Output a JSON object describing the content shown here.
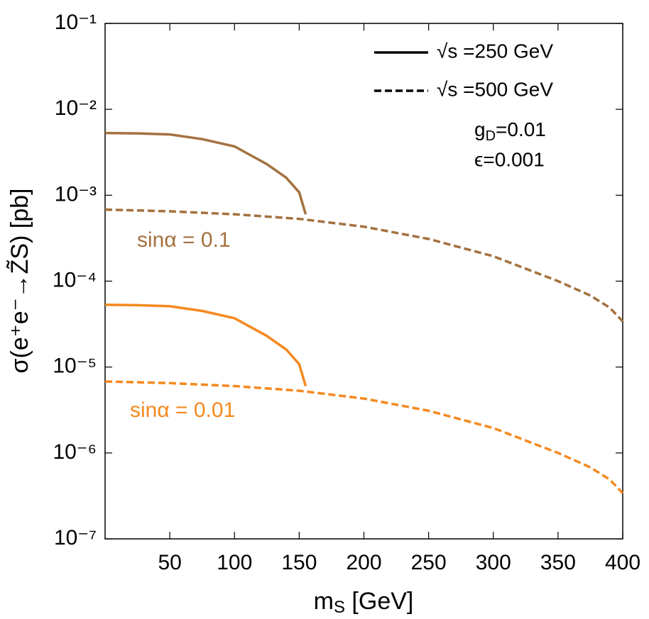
{
  "chart_data": {
    "type": "line",
    "y_label": "σ(e⁺e⁻→Z̃S) [pb]",
    "x_label": [
      "m",
      "S",
      " [GeV]"
    ],
    "xlim": [
      0,
      400
    ],
    "xticks": [
      50,
      100,
      150,
      200,
      250,
      300,
      350,
      400
    ],
    "ylim": [
      1e-07,
      0.1
    ],
    "log_y": true,
    "yticks": [
      {
        "value": 1e-07,
        "label": "10⁻⁷"
      },
      {
        "value": 1e-06,
        "label": "10⁻⁶"
      },
      {
        "value": 1e-05,
        "label": "10⁻⁵"
      },
      {
        "value": 0.0001,
        "label": "10⁻⁴"
      },
      {
        "value": 0.001,
        "label": "10⁻³"
      },
      {
        "value": 0.01,
        "label": "10⁻²"
      },
      {
        "value": 0.1,
        "label": "10⁻¹"
      }
    ],
    "legend": [
      {
        "label": "√s =250 GeV",
        "dash": "solid"
      },
      {
        "label": "√s =500 GeV",
        "dash": "dashed"
      }
    ],
    "coupling_label": [
      "g",
      "D",
      "=0.01"
    ],
    "epsilon_label": "ϵ=0.001",
    "series": [
      {
        "color": "#a4713f",
        "dash": "solid",
        "x": [
          0,
          25,
          50,
          75,
          100,
          125,
          140,
          150,
          155
        ],
        "values": [
          0.0053,
          0.00525,
          0.0051,
          0.0045,
          0.0037,
          0.0023,
          0.0016,
          0.00108,
          0.0006
        ]
      },
      {
        "color": "#a4713f",
        "dash": "dashed",
        "x": [
          0,
          50,
          100,
          150,
          200,
          250,
          300,
          350,
          375,
          390,
          400
        ],
        "values": [
          0.00068,
          0.00065,
          0.0006,
          0.00053,
          0.00043,
          0.00031,
          0.000195,
          0.0001,
          6.8e-05,
          4.9e-05,
          3.4e-05
        ]
      },
      {
        "color": "#f5891f",
        "dash": "solid",
        "x": [
          0,
          25,
          50,
          75,
          100,
          125,
          140,
          150,
          155
        ],
        "values": [
          5.3e-05,
          5.25e-05,
          5.1e-05,
          4.5e-05,
          3.7e-05,
          2.3e-05,
          1.6e-05,
          1.08e-05,
          6e-06
        ]
      },
      {
        "color": "#f5891f",
        "dash": "dashed",
        "x": [
          0,
          50,
          100,
          150,
          200,
          250,
          300,
          350,
          375,
          390,
          400
        ],
        "values": [
          6.8e-06,
          6.5e-06,
          6e-06,
          5.3e-06,
          4.3e-06,
          3.1e-06,
          1.95e-06,
          1e-06,
          6.8e-07,
          4.9e-07,
          3.4e-07
        ]
      }
    ],
    "annotations": [
      {
        "text": "sinα = 0.1",
        "color": "#a4713f"
      },
      {
        "text": "sinα = 0.01",
        "color": "#f5891f"
      }
    ]
  }
}
